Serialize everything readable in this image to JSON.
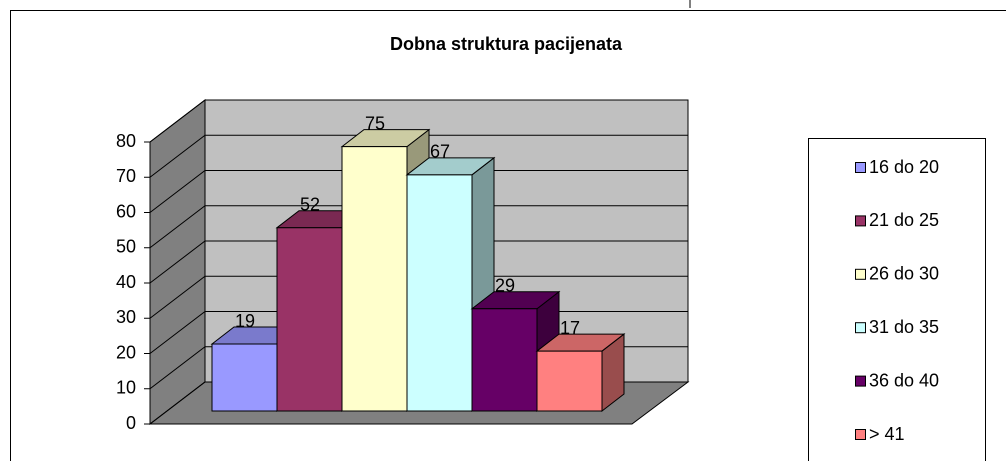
{
  "chart_data": {
    "type": "bar3d",
    "title": "Dobna struktura pacijenata",
    "categories": [
      "16 do 20",
      "21 do 25",
      "26 do 30",
      "31 do 35",
      "36 do 40",
      "> 41"
    ],
    "values": [
      19,
      52,
      75,
      67,
      29,
      17
    ],
    "colors": [
      "#9999ff",
      "#993366",
      "#ffffcc",
      "#ccffff",
      "#660066",
      "#ff8080"
    ],
    "ylim": [
      0,
      80
    ],
    "yticks": [
      0,
      10,
      20,
      30,
      40,
      50,
      60,
      70,
      80
    ],
    "grid": true,
    "legend": "right"
  }
}
